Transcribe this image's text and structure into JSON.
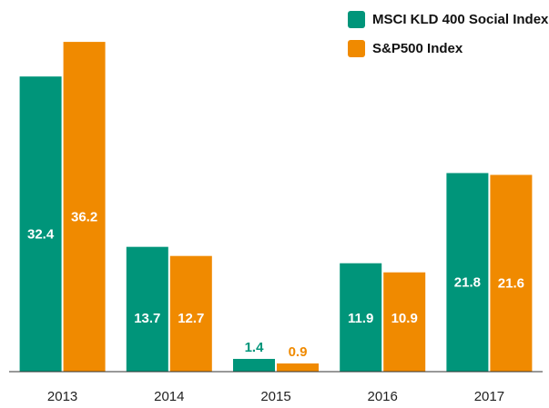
{
  "chart_data": {
    "type": "bar",
    "categories": [
      "2013",
      "2014",
      "2015",
      "2016",
      "2017"
    ],
    "series": [
      {
        "name": "MSCI KLD 400 Social Index",
        "color": "#00957a",
        "values": [
          32.4,
          13.7,
          1.4,
          11.9,
          21.8
        ]
      },
      {
        "name": "S&P500 Index",
        "color": "#f08a00",
        "values": [
          36.2,
          12.7,
          0.9,
          10.9,
          21.6
        ]
      }
    ],
    "ylim": [
      0,
      40
    ]
  }
}
